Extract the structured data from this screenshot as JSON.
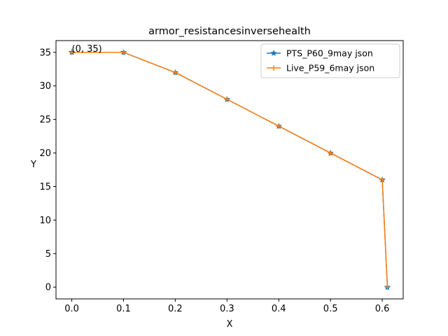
{
  "chart_data": {
    "type": "line",
    "title": "armor_resistancesinversehealth",
    "xlabel": "X",
    "ylabel": "Y",
    "xlim": [
      -0.0305,
      0.6405
    ],
    "ylim": [
      -1.75,
      36.75
    ],
    "x_ticks": [
      0.0,
      0.1,
      0.2,
      0.3,
      0.4,
      0.5,
      0.6
    ],
    "x_tick_labels": [
      "0.0",
      "0.1",
      "0.2",
      "0.3",
      "0.4",
      "0.5",
      "0.6"
    ],
    "y_ticks": [
      0,
      5,
      10,
      15,
      20,
      25,
      30,
      35
    ],
    "y_tick_labels": [
      "0",
      "5",
      "10",
      "15",
      "20",
      "25",
      "30",
      "35"
    ],
    "grid": false,
    "legend_position": "top-right",
    "annotations": [
      {
        "text": "(0, 35)",
        "x": 0,
        "y": 35
      }
    ],
    "series": [
      {
        "name": "PTS_P60_9may json",
        "color": "#1f77b4",
        "marker": "star",
        "x": [
          0,
          0.1,
          0.2,
          0.3,
          0.4,
          0.5,
          0.6,
          0.61
        ],
        "y": [
          35,
          35,
          32,
          28,
          24,
          20,
          16,
          0
        ]
      },
      {
        "name": "Live_P59_6may json",
        "color": "#ff7f0e",
        "marker": "plus",
        "x": [
          0,
          0.1,
          0.2,
          0.3,
          0.4,
          0.5,
          0.6,
          0.61
        ],
        "y": [
          35,
          35,
          32,
          28,
          24,
          20,
          16,
          0
        ]
      }
    ]
  }
}
